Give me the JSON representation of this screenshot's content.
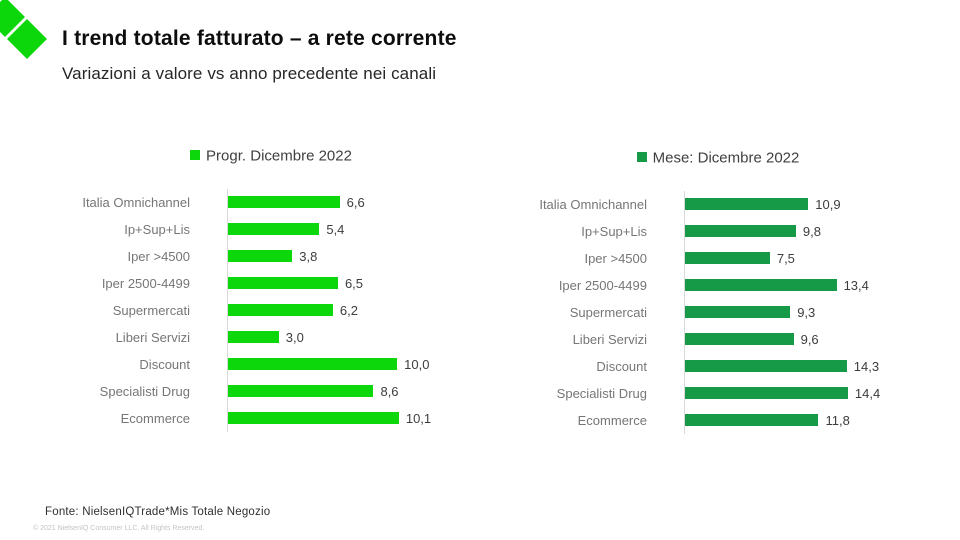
{
  "header": {
    "title": "I trend totale fatturato – a rete corrente",
    "subtitle": "Variazioni a valore vs anno precedente nei canali"
  },
  "logo": {
    "icon": "nielseniq-double-diamond",
    "color": "#0bd70b"
  },
  "chart_data": [
    {
      "type": "bar",
      "orientation": "horizontal",
      "legend": "Progr. Dicembre 2022",
      "color": "#0bd70b",
      "categories": [
        "Italia Omnichannel",
        "Ip+Sup+Lis",
        "Iper >4500",
        "Iper 2500-4499",
        "Supermercati",
        "Liberi Servizi",
        "Discount",
        "Specialisti Drug",
        "Ecommerce"
      ],
      "values": [
        6.6,
        5.4,
        3.8,
        6.5,
        6.2,
        3.0,
        10.0,
        8.6,
        10.1
      ],
      "value_labels": [
        "6,6",
        "5,4",
        "3,8",
        "6,5",
        "6,2",
        "3,0",
        "10,0",
        "8,6",
        "10,1"
      ],
      "xlim": [
        0,
        12
      ],
      "grid": false,
      "legend_position": "top",
      "axis_line_color": "#d9d9d9"
    },
    {
      "type": "bar",
      "orientation": "horizontal",
      "legend": "Mese: Dicembre 2022",
      "color": "#169a48",
      "categories": [
        "Italia Omnichannel",
        "Ip+Sup+Lis",
        "Iper >4500",
        "Iper 2500-4499",
        "Supermercati",
        "Liberi Servizi",
        "Discount",
        "Specialisti Drug",
        "Ecommerce"
      ],
      "values": [
        10.9,
        9.8,
        7.5,
        13.4,
        9.3,
        9.6,
        14.3,
        14.4,
        11.8
      ],
      "value_labels": [
        "10,9",
        "9,8",
        "7,5",
        "13,4",
        "9,3",
        "9,6",
        "14,3",
        "14,4",
        "11,8"
      ],
      "xlim": [
        0,
        16
      ],
      "grid": false,
      "legend_position": "top",
      "axis_line_color": "#d9d9d9"
    }
  ],
  "footer": {
    "source": "Fonte: NielsenIQTrade*Mis Totale Negozio",
    "copyright": "© 2021 NielsenIQ Consumer LLC. All Rights Reserved."
  }
}
